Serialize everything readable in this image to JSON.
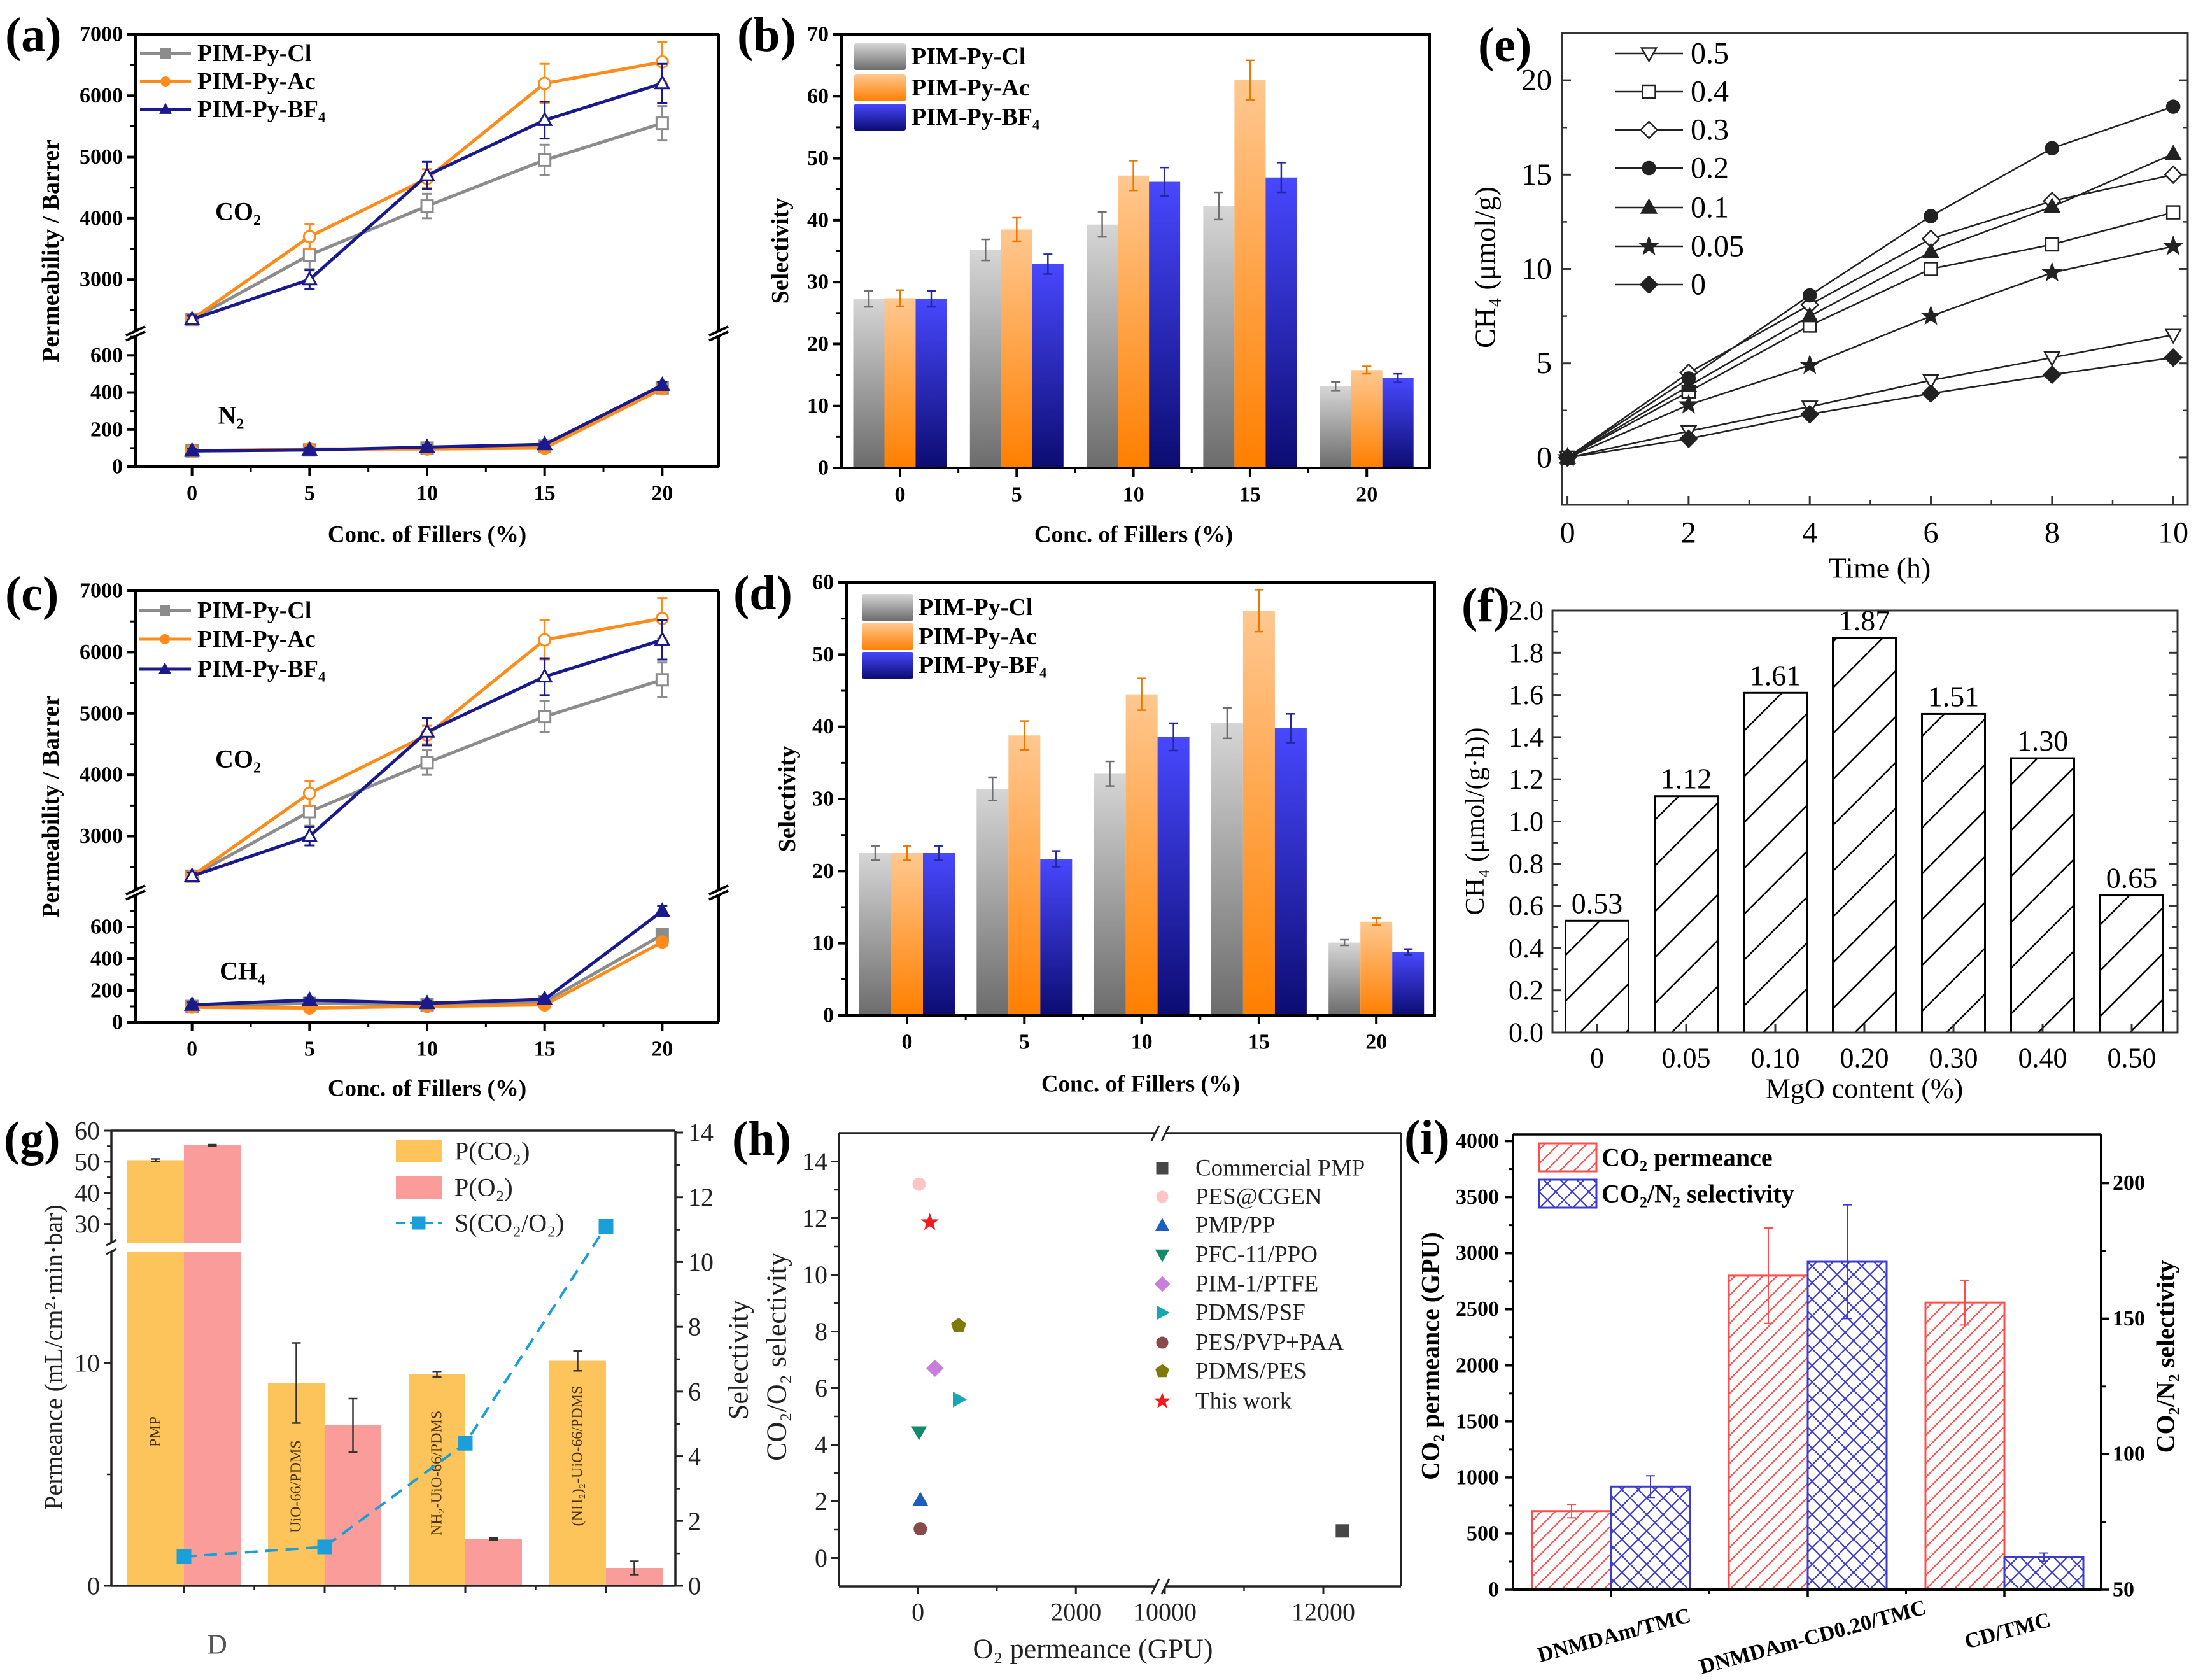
{
  "figure": {
    "background": "#ffffff",
    "panel_count": 9
  },
  "chart_data": [
    {
      "id": "a",
      "panel_label": "(a)",
      "type": "line",
      "title": "",
      "xlabel": "Conc. of Fillers (%)",
      "ylabel": "Permeability / Barrer",
      "x": [
        0,
        5,
        10,
        15,
        20
      ],
      "xtick_labels": [
        "0",
        "5",
        "10",
        "15",
        "20"
      ],
      "xlim": [
        -2.4,
        22.4
      ],
      "axis_break": "y",
      "ylim_upper": [
        2160,
        7000
      ],
      "ytick_labels_upper": [
        "3000",
        "4000",
        "5000",
        "6000",
        "7000"
      ],
      "ylim_lower": [
        0,
        704
      ],
      "ytick_labels_lower": [
        "0",
        "200",
        "400",
        "600"
      ],
      "annotations": [
        {
          "text": "CO₂",
          "segment": "upper"
        },
        {
          "text": "N₂",
          "segment": "lower"
        }
      ],
      "legend_position": "top-left",
      "grid": false,
      "series": [
        {
          "name": "PIM-Py-Cl",
          "color": "#8c8c8c",
          "marker": "square",
          "upper": [
            2350,
            3400,
            4200,
            4950,
            5550
          ],
          "upper_err": [
            60,
            230,
            200,
            250,
            280
          ],
          "lower": [
            85,
            90,
            100,
            110,
            425
          ],
          "lower_err": [
            12,
            12,
            12,
            12,
            15
          ]
        },
        {
          "name": "PIM-Py-Ac",
          "color": "#ff8c1a",
          "marker": "circle",
          "upper": [
            2350,
            3700,
            4650,
            6200,
            6550
          ],
          "upper_err": [
            60,
            200,
            150,
            320,
            330
          ],
          "lower": [
            85,
            95,
            95,
            100,
            420
          ],
          "lower_err": [
            12,
            12,
            12,
            12,
            15
          ]
        },
        {
          "name": "PIM-Py-BF₄",
          "color": "#1a1a8c",
          "marker": "triangle-up",
          "upper": [
            2350,
            3000,
            4700,
            5600,
            6200
          ],
          "upper_err": [
            60,
            150,
            220,
            300,
            320
          ],
          "lower": [
            85,
            90,
            105,
            120,
            440
          ],
          "lower_err": [
            12,
            12,
            12,
            12,
            15
          ]
        }
      ]
    },
    {
      "id": "b",
      "panel_label": "(b)",
      "type": "bar",
      "title": "",
      "xlabel": "Conc. of Fillers (%)",
      "ylabel": "Selectivity",
      "categories": [
        "0",
        "5",
        "10",
        "15",
        "20"
      ],
      "ylim": [
        0,
        70
      ],
      "ytick_labels": [
        "0",
        "10",
        "20",
        "30",
        "40",
        "50",
        "60",
        "70"
      ],
      "legend_position": "top-left",
      "grid": false,
      "series": [
        {
          "name": "PIM-Py-Cl",
          "gradient": [
            "#d6d6d6",
            "#6c6c6c"
          ],
          "error_color": "#6f6f6f",
          "values": [
            27.3,
            35.2,
            39.3,
            42.3,
            13.2
          ],
          "errors": [
            1.3,
            1.7,
            2.0,
            2.2,
            0.7
          ]
        },
        {
          "name": "PIM-Py-Ac",
          "gradient": [
            "#ffc890",
            "#ff7f00"
          ],
          "error_color": "#e87800",
          "values": [
            27.4,
            38.5,
            47.2,
            62.6,
            15.8
          ],
          "errors": [
            1.3,
            1.9,
            2.4,
            3.2,
            0.6
          ]
        },
        {
          "name": "PIM-Py-BF₄",
          "gradient": [
            "#4848ff",
            "#0c0c72"
          ],
          "error_color": "#26269e",
          "values": [
            27.3,
            32.9,
            46.2,
            46.9,
            14.5
          ],
          "errors": [
            1.3,
            1.6,
            2.3,
            2.4,
            0.7
          ]
        }
      ]
    },
    {
      "id": "c",
      "panel_label": "(c)",
      "type": "line",
      "title": "",
      "xlabel": "Conc. of Fillers (%)",
      "ylabel": "Permeability / Barrer",
      "x": [
        0,
        5,
        10,
        15,
        20
      ],
      "xtick_labels": [
        "0",
        "5",
        "10",
        "15",
        "20"
      ],
      "xlim": [
        -2.4,
        22.4
      ],
      "axis_break": "y",
      "ylim_upper": [
        2124,
        7000
      ],
      "ytick_labels_upper": [
        "3000",
        "4000",
        "5000",
        "6000",
        "7000"
      ],
      "ylim_lower": [
        0,
        800
      ],
      "ytick_labels_lower": [
        "0",
        "200",
        "400",
        "600"
      ],
      "annotations": [
        {
          "text": "CO₂",
          "segment": "upper"
        },
        {
          "text": "CH₄",
          "segment": "lower"
        }
      ],
      "legend_position": "top-left",
      "grid": false,
      "series": [
        {
          "name": "PIM-Py-Cl",
          "color": "#8c8c8c",
          "marker": "square",
          "upper": [
            2350,
            3400,
            4200,
            4950,
            5550
          ],
          "upper_err": [
            60,
            230,
            200,
            250,
            280
          ],
          "lower": [
            100,
            120,
            110,
            130,
            550
          ],
          "lower_err": [
            15,
            15,
            15,
            15,
            25
          ]
        },
        {
          "name": "PIM-Py-Ac",
          "color": "#ff8c1a",
          "marker": "circle",
          "upper": [
            2350,
            3700,
            4650,
            6200,
            6550
          ],
          "upper_err": [
            60,
            200,
            150,
            320,
            330
          ],
          "lower": [
            95,
            90,
            100,
            110,
            505
          ],
          "lower_err": [
            15,
            15,
            15,
            15,
            25
          ]
        },
        {
          "name": "PIM-Py-BF₄",
          "color": "#1a1a8c",
          "marker": "triangle-up",
          "upper": [
            2350,
            3000,
            4700,
            5600,
            6200
          ],
          "upper_err": [
            60,
            150,
            220,
            300,
            320
          ],
          "lower": [
            110,
            140,
            120,
            145,
            700
          ],
          "lower_err": [
            15,
            15,
            15,
            15,
            30
          ]
        }
      ]
    },
    {
      "id": "d",
      "panel_label": "(d)",
      "type": "bar",
      "title": "",
      "xlabel": "Conc. of Fillers (%)",
      "ylabel": "Selectivity",
      "categories": [
        "0",
        "5",
        "10",
        "15",
        "20"
      ],
      "ylim": [
        0,
        60
      ],
      "ytick_labels": [
        "0",
        "10",
        "20",
        "30",
        "40",
        "50",
        "60"
      ],
      "legend_position": "top-left",
      "grid": false,
      "series": [
        {
          "name": "PIM-Py-Cl",
          "gradient": [
            "#d6d6d6",
            "#6c6c6c"
          ],
          "error_color": "#6f6f6f",
          "values": [
            22.5,
            31.4,
            33.5,
            40.5,
            10.1
          ],
          "errors": [
            1.0,
            1.6,
            1.7,
            2.1,
            0.4
          ]
        },
        {
          "name": "PIM-Py-Ac",
          "gradient": [
            "#ffc890",
            "#ff7f00"
          ],
          "error_color": "#e87800",
          "values": [
            22.5,
            38.8,
            44.5,
            56.1,
            13.0
          ],
          "errors": [
            1.0,
            2.0,
            2.2,
            2.9,
            0.5
          ]
        },
        {
          "name": "PIM-Py-BF₄",
          "gradient": [
            "#4848ff",
            "#0c0c72"
          ],
          "error_color": "#26269e",
          "values": [
            22.5,
            21.7,
            38.6,
            39.8,
            8.8
          ],
          "errors": [
            1.0,
            1.1,
            1.9,
            2.0,
            0.4
          ]
        }
      ]
    },
    {
      "id": "e",
      "panel_label": "(e)",
      "type": "line",
      "title": "",
      "xlabel": "Time (h)",
      "ylabel": "CH₄ (μmol/g)",
      "x": [
        0,
        2,
        4,
        6,
        8,
        10
      ],
      "xtick_labels": [
        "0",
        "2",
        "4",
        "6",
        "8",
        "10"
      ],
      "xlim": [
        -0.09,
        10.24
      ],
      "ylim": [
        -2.5,
        22.5
      ],
      "ytick_labels": [
        "0",
        "5",
        "10",
        "15",
        "20"
      ],
      "legend_position": "top-left",
      "grid": false,
      "series": [
        {
          "name": "0.5",
          "marker": "triangle-down-open",
          "color": "#222222",
          "values": [
            0,
            1.4,
            2.7,
            4.1,
            5.3,
            6.5
          ]
        },
        {
          "name": "0.4",
          "marker": "square-open",
          "color": "#222222",
          "values": [
            0,
            3.5,
            7.0,
            10.0,
            11.3,
            13.0
          ]
        },
        {
          "name": "0.3",
          "marker": "diamond-open",
          "color": "#222222",
          "values": [
            0,
            4.5,
            8.1,
            11.6,
            13.6,
            15.0
          ]
        },
        {
          "name": "0.2",
          "marker": "circle",
          "color": "#222222",
          "values": [
            0,
            4.2,
            8.6,
            12.8,
            16.4,
            18.6
          ]
        },
        {
          "name": "0.1",
          "marker": "triangle-up",
          "color": "#222222",
          "values": [
            0,
            3.8,
            7.5,
            10.9,
            13.3,
            16.1
          ]
        },
        {
          "name": "0.05",
          "marker": "star",
          "color": "#222222",
          "values": [
            0,
            2.8,
            4.9,
            7.5,
            9.8,
            11.2
          ]
        },
        {
          "name": "0",
          "marker": "diamond",
          "color": "#222222",
          "values": [
            0,
            1.0,
            2.3,
            3.4,
            4.4,
            5.3
          ]
        }
      ]
    },
    {
      "id": "f",
      "panel_label": "(f)",
      "type": "bar",
      "title": "",
      "xlabel": "MgO content (%)",
      "ylabel": "CH₄ (μmol/(g·h))",
      "categories": [
        "0",
        "0.05",
        "0.10",
        "0.20",
        "0.30",
        "0.40",
        "0.50"
      ],
      "values": [
        0.53,
        1.12,
        1.61,
        1.87,
        1.51,
        1.3,
        0.65
      ],
      "value_labels": [
        "0.53",
        "1.12",
        "1.61",
        "1.87",
        "1.51",
        "1.30",
        "0.65"
      ],
      "ylim": [
        0,
        2.0
      ],
      "ytick_labels": [
        "0.0",
        "0.2",
        "0.4",
        "0.6",
        "0.8",
        "1.0",
        "1.2",
        "1.4",
        "1.6",
        "1.8",
        "2.0"
      ],
      "fill": "diagonal-hatch",
      "color": "#000000",
      "grid": false
    },
    {
      "id": "g",
      "panel_label": "(g)",
      "type": "bar",
      "title": "",
      "ylabel": "Permeance (mL/cm²·min·bar)",
      "ylabel_right": "Selectivity",
      "stray_glyph": "D",
      "categories": [
        "PMP",
        "UiO-66/PDMS",
        "NH₂-UiO-66/PDMS",
        "(NH₂)₂-UiO-66/PDMS"
      ],
      "axis_break": "y-left",
      "ylim_lower": [
        0,
        15
      ],
      "ytick_labels_lower": [
        "0",
        "10"
      ],
      "ylim_upper": [
        24,
        60
      ],
      "ytick_labels_upper": [
        "30",
        "40",
        "50",
        "60"
      ],
      "ylim_right": [
        0,
        14
      ],
      "ytick_labels_right": [
        "0",
        "2",
        "4",
        "6",
        "8",
        "10",
        "12",
        "14"
      ],
      "legend_position": "top-right",
      "grid": false,
      "series": [
        {
          "name": "P(CO₂)",
          "kind": "bar",
          "axis": "left",
          "color": "#fdc45c",
          "values": [
            50.5,
            9.1,
            9.5,
            10.1
          ],
          "errors": [
            0.4,
            1.8,
            0.12,
            0.45
          ]
        },
        {
          "name": "P(O₂)",
          "kind": "bar",
          "axis": "left",
          "color": "#f99c9a",
          "values": [
            55.3,
            7.2,
            2.1,
            0.8
          ],
          "errors": [
            0.2,
            1.2,
            0.05,
            0.3
          ]
        },
        {
          "name": "S(CO₂/O₂)",
          "kind": "line",
          "axis": "right",
          "color": "#1a9fd8",
          "style": "dashed",
          "marker": "square",
          "values": [
            0.9,
            1.2,
            4.4,
            11.1
          ]
        }
      ]
    },
    {
      "id": "h",
      "panel_label": "(h)",
      "type": "scatter",
      "title": "",
      "xlabel": "O₂ permeance (GPU)",
      "ylabel": "CO₂/O₂ selectivity",
      "axis_break": "x",
      "xlim_segments": [
        [
          -1000,
          3070
        ],
        [
          9944,
          12980
        ]
      ],
      "xtick_labels": [
        "0",
        "2000",
        "10000",
        "12000"
      ],
      "ylim": [
        -1,
        15
      ],
      "ytick_labels": [
        "0",
        "2",
        "4",
        "6",
        "8",
        "10",
        "12",
        "14"
      ],
      "legend_position": "top-right",
      "grid": false,
      "series": [
        {
          "name": "Commercial PMP",
          "marker": "square",
          "color": "#474747",
          "points": [
            [
              12240,
              0.96
            ]
          ]
        },
        {
          "name": "PES@CGEN",
          "marker": "circle",
          "color": "#ffc4c4",
          "points": [
            [
              15,
              13.2
            ]
          ]
        },
        {
          "name": "PMP/PP",
          "marker": "triangle-up",
          "color": "#1d5fc0",
          "points": [
            [
              30,
              2.05
            ]
          ]
        },
        {
          "name": "PFC-11/PPO",
          "marker": "triangle-down",
          "color": "#148a6a",
          "points": [
            [
              15,
              4.45
            ]
          ]
        },
        {
          "name": "PIM-1/PTFE",
          "marker": "diamond",
          "color": "#c97ddc",
          "points": [
            [
              215,
              6.7
            ]
          ]
        },
        {
          "name": "PDMS/PSF",
          "marker": "triangle-right",
          "color": "#17a6b4",
          "points": [
            [
              515,
              5.6
            ]
          ]
        },
        {
          "name": "PES/PVP+PAA",
          "marker": "circle",
          "color": "#8b4a4a",
          "points": [
            [
              30,
              1.03
            ]
          ]
        },
        {
          "name": "PDMS/PES",
          "marker": "pentagon",
          "color": "#7d7a0a",
          "points": [
            [
              515,
              8.2
            ]
          ]
        },
        {
          "name": "This work",
          "marker": "star",
          "color": "#ee1c1c",
          "points": [
            [
              150,
              11.85
            ]
          ]
        }
      ]
    },
    {
      "id": "i",
      "panel_label": "(i)",
      "type": "bar",
      "title": "",
      "xlabel": "",
      "ylabel": "CO₂ permeance (GPU)",
      "ylabel_right": "CO₂/N₂ selectivity",
      "categories": [
        "DNMDAm/TMC",
        "DNMDAm-CD0.20/TMC",
        "CD/TMC"
      ],
      "ylim": [
        0,
        4060
      ],
      "ytick_labels": [
        "0",
        "500",
        "1000",
        "1500",
        "2000",
        "2500",
        "3000",
        "3500",
        "4000"
      ],
      "ylim_right": [
        50,
        218
      ],
      "ytick_labels_right": [
        "50",
        "100",
        "150",
        "200"
      ],
      "legend_position": "top-left",
      "grid": false,
      "series": [
        {
          "name": "CO₂ permeance",
          "axis": "left",
          "pattern": "diagonal-hatch",
          "color": "#ff4d4d",
          "values": [
            700,
            2800,
            2560
          ],
          "errors": [
            60,
            425,
            200
          ]
        },
        {
          "name": "CO₂/N₂ selectivity",
          "axis": "right",
          "pattern": "cross-hatch",
          "color": "#3b3bcc",
          "values": [
            88,
            171,
            62
          ],
          "errors": [
            4,
            21,
            1.5
          ]
        }
      ]
    }
  ]
}
